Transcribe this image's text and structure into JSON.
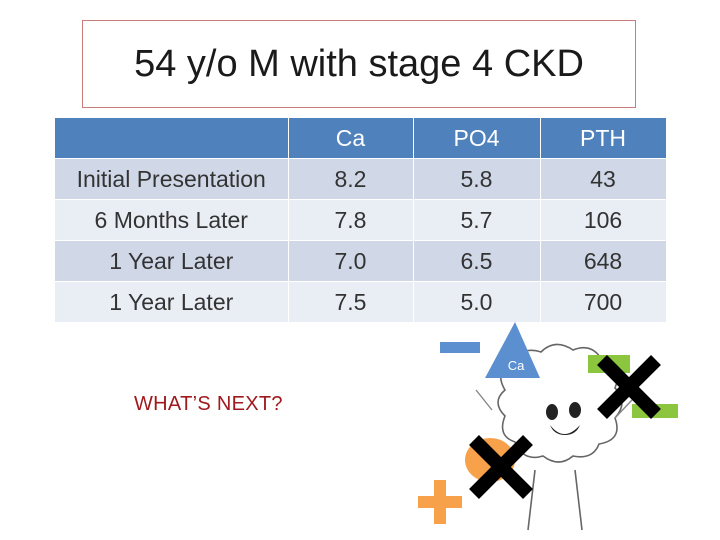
{
  "title": "54 y/o M with stage 4 CKD",
  "table": {
    "headers": [
      "",
      "Ca",
      "PO4",
      "PTH"
    ],
    "rows": [
      [
        "Initial Presentation",
        "8.2",
        "5.8",
        "43"
      ],
      [
        "6 Months Later",
        "7.8",
        "5.7",
        "106"
      ],
      [
        "1 Year Later",
        "7.0",
        "6.5",
        "648"
      ],
      [
        "1 Year Later",
        "7.5",
        "5.0",
        "700"
      ]
    ]
  },
  "next_label": "WHAT’S NEXT?",
  "cartoon": {
    "triangle_label": "Ca",
    "icons": [
      "minus-icon",
      "ca-triangle-icon",
      "cloud-character-icon",
      "green-minus-icon",
      "x-mark-icon",
      "orange-blob-icon",
      "plus-icon"
    ],
    "colors": {
      "blue": "#5b8fd0",
      "green": "#8cc63f",
      "orange": "#f7a24a",
      "black": "#000000"
    }
  }
}
